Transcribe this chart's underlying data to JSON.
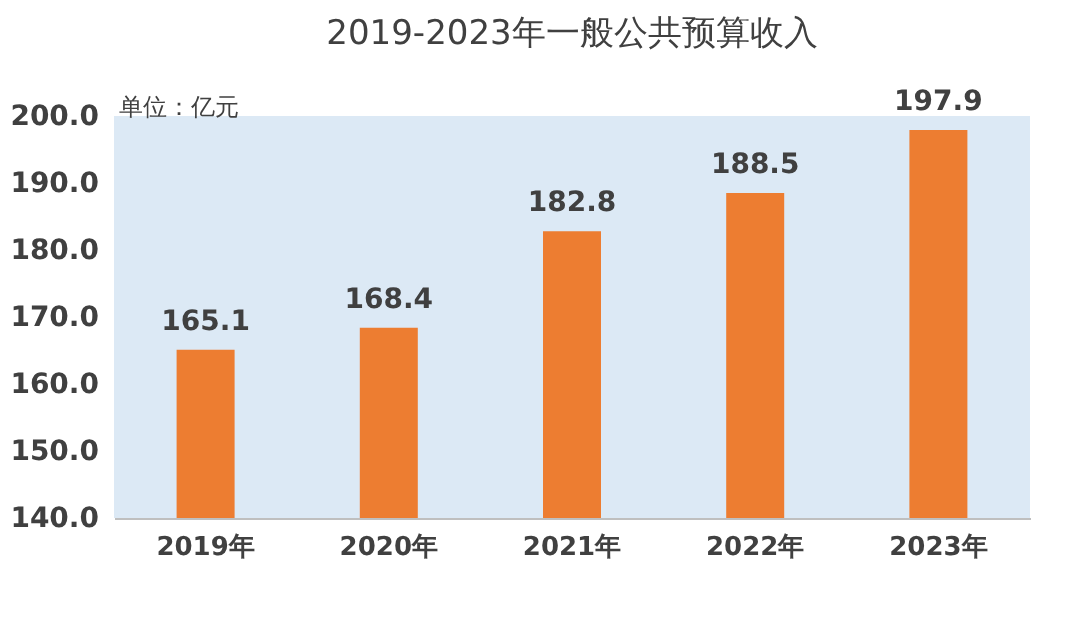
{
  "chart_data": {
    "type": "bar",
    "title": "2019-2023年一般公共预算收入",
    "ylabel": "单位：亿元",
    "categories": [
      "2019年",
      "2020年",
      "2021年",
      "2022年",
      "2023年"
    ],
    "values": [
      165.1,
      168.4,
      182.8,
      188.5,
      197.9
    ],
    "color": "#ed7d31",
    "ylim": [
      140,
      200
    ],
    "yticks": [
      {
        "value": 140,
        "label": "140.0"
      },
      {
        "value": 150,
        "label": "150.0"
      },
      {
        "value": 160,
        "label": "160.0"
      },
      {
        "value": 170,
        "label": "170.0"
      },
      {
        "value": 180,
        "label": "180.0"
      },
      {
        "value": 190,
        "label": "190.0"
      },
      {
        "value": 200,
        "label": "200.0"
      }
    ],
    "data_labels": true,
    "grid": false
  }
}
